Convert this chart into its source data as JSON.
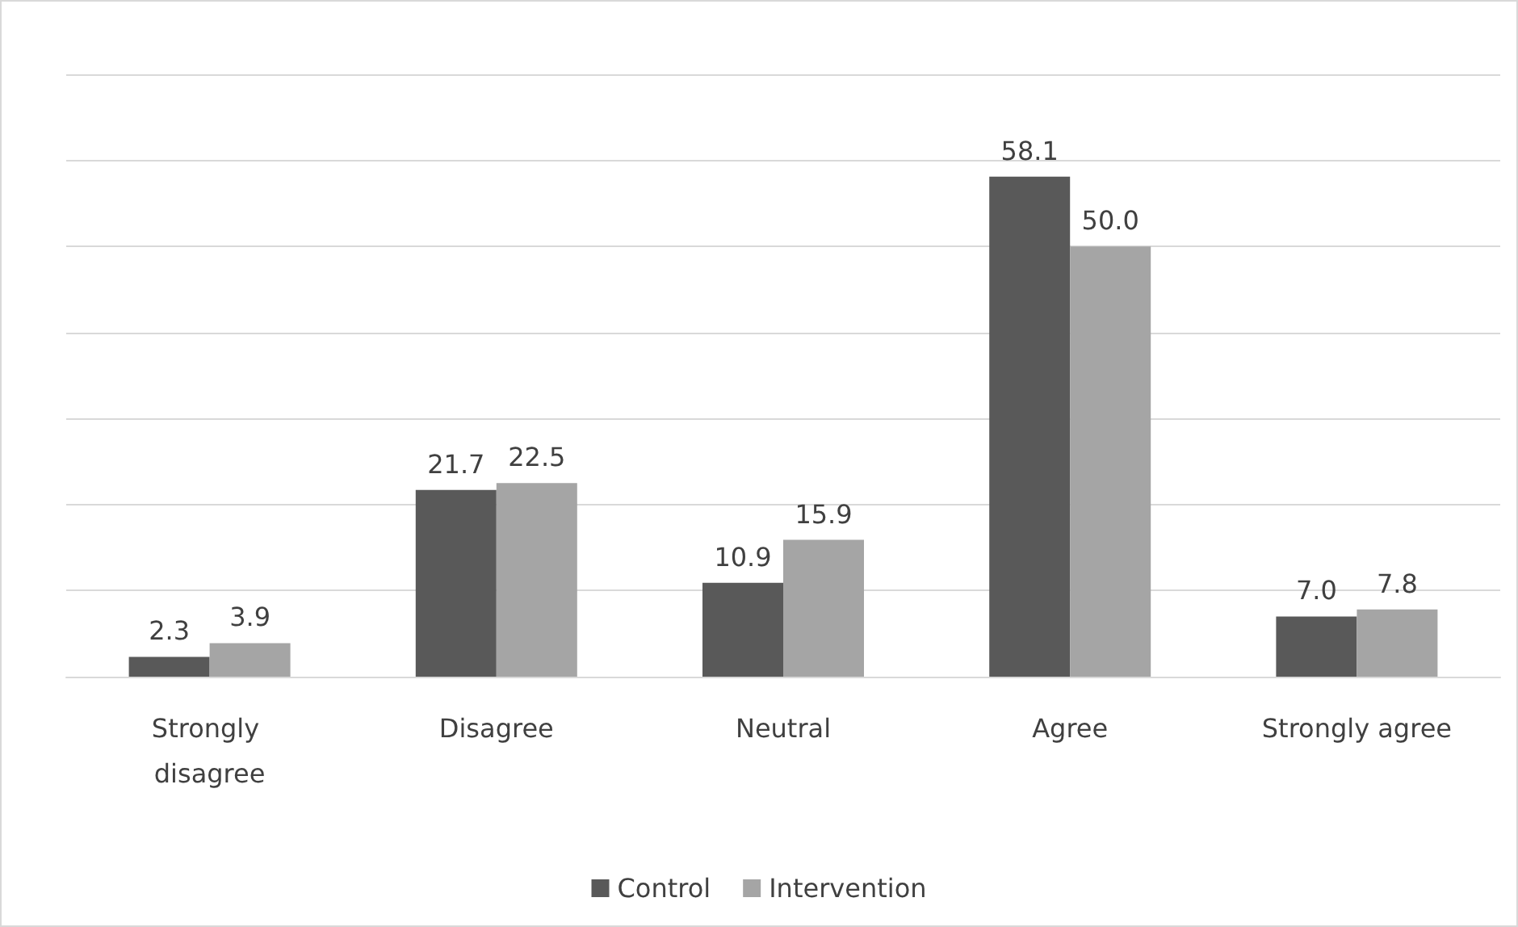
{
  "chart_data": {
    "type": "bar",
    "categories": [
      "Strongly disagree",
      "Disagree",
      "Neutral",
      "Agree",
      "Strongly agree"
    ],
    "series": [
      {
        "name": "Control",
        "color": "#595959",
        "values": [
          2.3,
          21.7,
          10.9,
          58.1,
          7.0
        ],
        "value_labels": [
          "2.3",
          "21.7",
          "10.9",
          "58.1",
          "7.0"
        ]
      },
      {
        "name": "Intervention",
        "color": "#a5a5a5",
        "values": [
          3.9,
          22.5,
          15.9,
          50.0,
          7.8
        ],
        "value_labels": [
          "3.9",
          "22.5",
          "15.9",
          "50.0",
          "7.8"
        ]
      }
    ],
    "ylim": [
      0,
      70
    ],
    "yticks": [
      {
        "value": 0,
        "label": null
      },
      {
        "value": 10,
        "label": null
      },
      {
        "value": 20,
        "label": null
      },
      {
        "value": 30,
        "label": null
      },
      {
        "value": 40,
        "label": null
      },
      {
        "value": 50,
        "label": null
      },
      {
        "value": 60,
        "label": null
      },
      {
        "value": 70,
        "label": null
      }
    ],
    "grid": "y",
    "legend": "bottom",
    "tick_labels": "x"
  }
}
